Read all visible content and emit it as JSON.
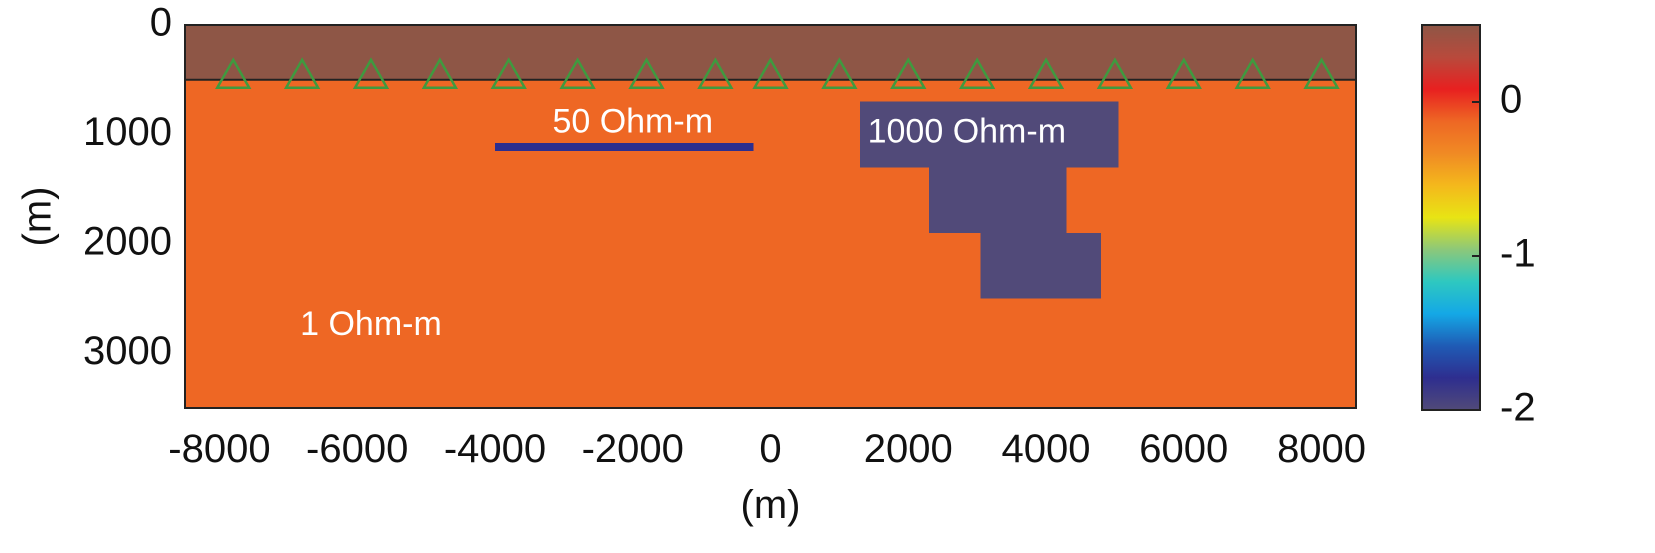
{
  "chart_data": {
    "type": "heatmap",
    "xlabel": "(m)",
    "ylabel": "(m)",
    "xlim": [
      -8500,
      8500
    ],
    "ylim": [
      0,
      3500
    ],
    "y_reversed": true,
    "xticks": [
      "-8000",
      "-6000",
      "-4000",
      "-2000",
      "0",
      "2000",
      "4000",
      "6000",
      "8000"
    ],
    "xtick_values": [
      -8000,
      -6000,
      -4000,
      -2000,
      0,
      2000,
      4000,
      6000,
      8000
    ],
    "yticks": [
      "0",
      "1000",
      "2000",
      "3000"
    ],
    "ytick_values": [
      0,
      1000,
      2000,
      3000
    ],
    "layers": [
      {
        "name": "air",
        "x": [
          -8500,
          8500
        ],
        "z": [
          0,
          500
        ],
        "color": "#8e5646"
      },
      {
        "name": "background",
        "x": [
          -8500,
          8500
        ],
        "z": [
          500,
          3500
        ],
        "color": "#ee6724"
      }
    ],
    "bodies": [
      {
        "name": "conductor",
        "x": [
          -4000,
          -250
        ],
        "z": [
          1080,
          1150
        ],
        "color": "#2b2e8f"
      },
      {
        "name": "resistor-block-1",
        "x": [
          1300,
          5050
        ],
        "z": [
          700,
          1300
        ],
        "color": "#514a79"
      },
      {
        "name": "resistor-block-2",
        "x": [
          2300,
          4300
        ],
        "z": [
          1300,
          1900
        ],
        "color": "#514a79"
      },
      {
        "name": "resistor-block-3",
        "x": [
          3050,
          4800
        ],
        "z": [
          1900,
          2500
        ],
        "color": "#514a79"
      }
    ],
    "interface_depth": 500,
    "receivers_x": [
      -7800,
      -6800,
      -5800,
      -4800,
      -3800,
      -2800,
      -1800,
      -800,
      0,
      1000,
      2000,
      3000,
      4000,
      5000,
      6000,
      7000,
      8000
    ],
    "receiver_color": "#3f9a3f",
    "annotations": [
      {
        "text": "50 Ohm-m",
        "x": -2000,
        "z": 900
      },
      {
        "text": "1000 Ohm-m",
        "x": 2850,
        "z": 990
      },
      {
        "text": "1 Ohm-m",
        "x": -5800,
        "z": 2750
      }
    ],
    "colorbar": {
      "range": [
        -2,
        0.5
      ],
      "ticks": [
        "0",
        "-1",
        "-2"
      ],
      "tick_values": [
        0,
        -1,
        -2
      ],
      "stops": [
        "#514a79",
        "#2e2e8f",
        "#1f5bb5",
        "#14a8e6",
        "#2ec8c0",
        "#8cc87a",
        "#e8e414",
        "#f4b81c",
        "#f08a24",
        "#ee6724",
        "#e82020",
        "#b84a3c",
        "#8e5646"
      ]
    }
  }
}
